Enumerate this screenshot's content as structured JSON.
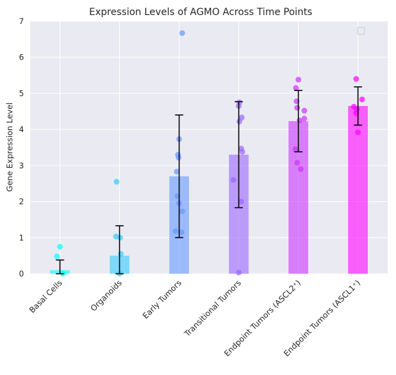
{
  "chart_data": {
    "type": "bar",
    "title": "Expression Levels of AGMO Across Time Points",
    "xlabel": "",
    "ylabel": "Gene Expression Level",
    "ylim": [
      0,
      7
    ],
    "yticks": [
      "0",
      "1",
      "2",
      "3",
      "4",
      "5",
      "6",
      "7"
    ],
    "grid": true,
    "legend": "top-right (empty)",
    "categories": [
      "Basal Cells",
      "Organoids",
      "Early Tumors",
      "Transitional Tumors",
      "Endpoint Tumors (ASCL2⁺)",
      "Endpoint Tumors (ASCL1⁺)"
    ],
    "colors": [
      "#00ffff",
      "#33ccff",
      "#6699ff",
      "#9966ff",
      "#cc33ff",
      "#ff00ff"
    ],
    "values": [
      0.1,
      0.5,
      2.7,
      3.3,
      4.23,
      4.65
    ],
    "errors": [
      0.28,
      0.83,
      1.7,
      1.47,
      0.85,
      0.53
    ],
    "points": [
      [
        {
          "x": -0.05,
          "y": 0.48
        },
        {
          "x": 0.0,
          "y": 0.75
        },
        {
          "x": 0.05,
          "y": 0.0
        }
      ],
      [
        {
          "x": -0.05,
          "y": 2.55
        },
        {
          "x": -0.06,
          "y": 1.03
        },
        {
          "x": 0.01,
          "y": 1.0
        },
        {
          "x": 0.02,
          "y": 0.55
        },
        {
          "x": 0.0,
          "y": 0.0
        }
      ],
      [
        {
          "x": 0.05,
          "y": 6.67
        },
        {
          "x": 0.0,
          "y": 3.73
        },
        {
          "x": -0.02,
          "y": 3.3
        },
        {
          "x": -0.01,
          "y": 3.22
        },
        {
          "x": -0.04,
          "y": 2.83
        },
        {
          "x": -0.03,
          "y": 2.15
        },
        {
          "x": 0.05,
          "y": 1.73
        },
        {
          "x": 0.0,
          "y": 1.95
        },
        {
          "x": -0.06,
          "y": 1.18
        },
        {
          "x": 0.04,
          "y": 1.15
        }
      ],
      [
        {
          "x": 0.01,
          "y": 4.75
        },
        {
          "x": 0.0,
          "y": 4.65
        },
        {
          "x": 0.05,
          "y": 4.33
        },
        {
          "x": 0.01,
          "y": 4.22
        },
        {
          "x": 0.04,
          "y": 3.47
        },
        {
          "x": 0.06,
          "y": 3.38
        },
        {
          "x": -0.09,
          "y": 2.6
        },
        {
          "x": 0.04,
          "y": 2.0
        },
        {
          "x": 0.0,
          "y": 0.03
        }
      ],
      [
        {
          "x": 0.0,
          "y": 5.38
        },
        {
          "x": -0.04,
          "y": 5.15
        },
        {
          "x": -0.03,
          "y": 4.78
        },
        {
          "x": -0.02,
          "y": 4.6
        },
        {
          "x": 0.1,
          "y": 4.52
        },
        {
          "x": 0.1,
          "y": 4.3
        },
        {
          "x": 0.02,
          "y": 4.25
        },
        {
          "x": -0.05,
          "y": 3.45
        },
        {
          "x": -0.02,
          "y": 3.08
        },
        {
          "x": 0.04,
          "y": 2.9
        }
      ],
      [
        {
          "x": -0.03,
          "y": 5.4
        },
        {
          "x": 0.07,
          "y": 4.83
        },
        {
          "x": -0.07,
          "y": 4.63
        },
        {
          "x": -0.02,
          "y": 4.55
        },
        {
          "x": -0.03,
          "y": 4.45
        },
        {
          "x": 0.0,
          "y": 3.92
        }
      ]
    ]
  }
}
